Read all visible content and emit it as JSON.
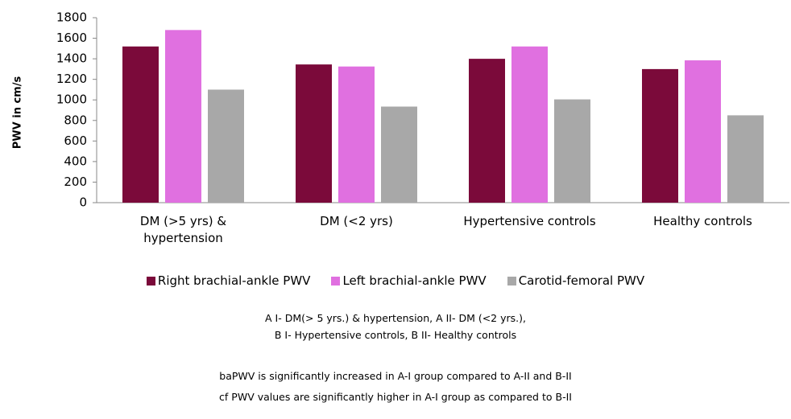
{
  "chart_data": {
    "type": "bar",
    "ylabel": "PWV in cm/s",
    "categories": [
      "DM (>5 yrs) & hypertension",
      "DM (<2 yrs)",
      "Hypertensive controls",
      "Healthy controls"
    ],
    "series": [
      {
        "name": "Right brachial-ankle PWV",
        "color": "#7b0a3a",
        "values": [
          1520,
          1345,
          1400,
          1300
        ]
      },
      {
        "name": "Left brachial-ankle PWV",
        "color": "#e070e0",
        "values": [
          1680,
          1325,
          1520,
          1385
        ]
      },
      {
        "name": "Carotid-femoral PWV",
        "color": "#a8a8a8",
        "values": [
          1100,
          935,
          1005,
          850
        ]
      }
    ],
    "ylim": [
      0,
      1800
    ],
    "yticks": [
      0,
      200,
      400,
      600,
      800,
      1000,
      1200,
      1400,
      1600,
      1800
    ],
    "grid": false,
    "legend": "bottom",
    "notes": [
      "A I- DM(> 5 yrs.) & hypertension, A II- DM (<2 yrs.),",
      "B I- Hypertensive controls, B II- Healthy controls",
      "baPWV is significantly increased in A-I group compared to A-II and B-II",
      "cf PWV values are significantly higher in A-I group as compared to B-II"
    ]
  }
}
